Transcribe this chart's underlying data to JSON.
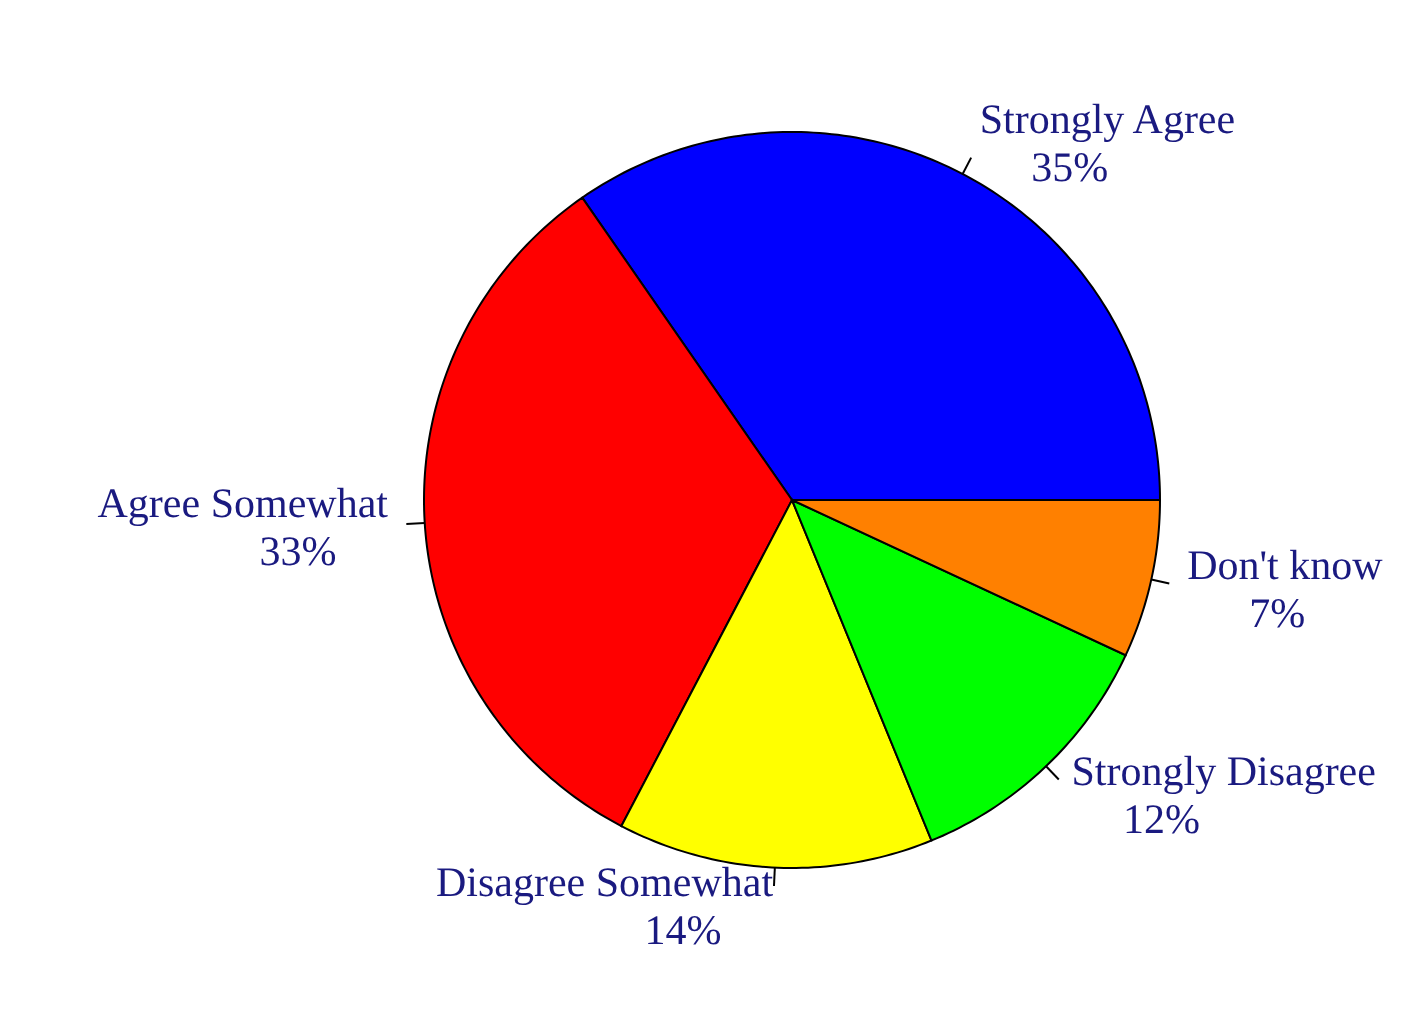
{
  "chart_data": {
    "type": "pie",
    "categories": [
      "Strongly Agree",
      "Agree Somewhat",
      "Disagree Somewhat",
      "Strongly Disagree",
      "Don't know"
    ],
    "values": [
      35,
      33,
      14,
      12,
      7
    ],
    "value_labels": [
      "35%",
      "33%",
      "14%",
      "12%",
      "7%"
    ],
    "colors": [
      "#0000ff",
      "#ff0000",
      "#ffff00",
      "#00ff00",
      "#ff8000"
    ]
  }
}
